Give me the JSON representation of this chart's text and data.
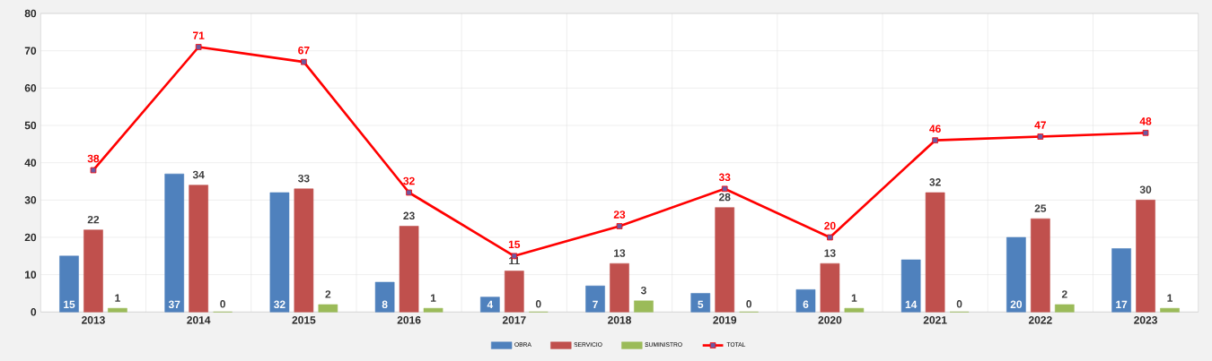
{
  "chart_data": {
    "type": "bar",
    "categories": [
      "2013",
      "2014",
      "2015",
      "2016",
      "2017",
      "2018",
      "2019",
      "2020",
      "2021",
      "2022",
      "2023"
    ],
    "series": [
      {
        "name": "OBRA",
        "color": "#4f81bd",
        "values": [
          15,
          37,
          32,
          8,
          4,
          7,
          5,
          6,
          14,
          20,
          17
        ]
      },
      {
        "name": "SERVICIO",
        "color": "#c0504d",
        "values": [
          22,
          34,
          33,
          23,
          11,
          13,
          28,
          13,
          32,
          25,
          30
        ]
      },
      {
        "name": "SUMINISTRO",
        "color": "#9bbb59",
        "values": [
          1,
          0,
          2,
          1,
          0,
          3,
          0,
          1,
          0,
          2,
          1
        ]
      },
      {
        "name": "TOTAL",
        "type": "line",
        "color": "#ff0000",
        "values": [
          38,
          71,
          67,
          32,
          15,
          23,
          33,
          20,
          46,
          47,
          48
        ]
      }
    ],
    "ylim": [
      0,
      80
    ],
    "yticks": [
      0,
      10,
      20,
      30,
      40,
      50,
      60,
      70,
      80
    ],
    "grid": true,
    "legend": "bottom",
    "marker": "square",
    "data_labels": true
  }
}
